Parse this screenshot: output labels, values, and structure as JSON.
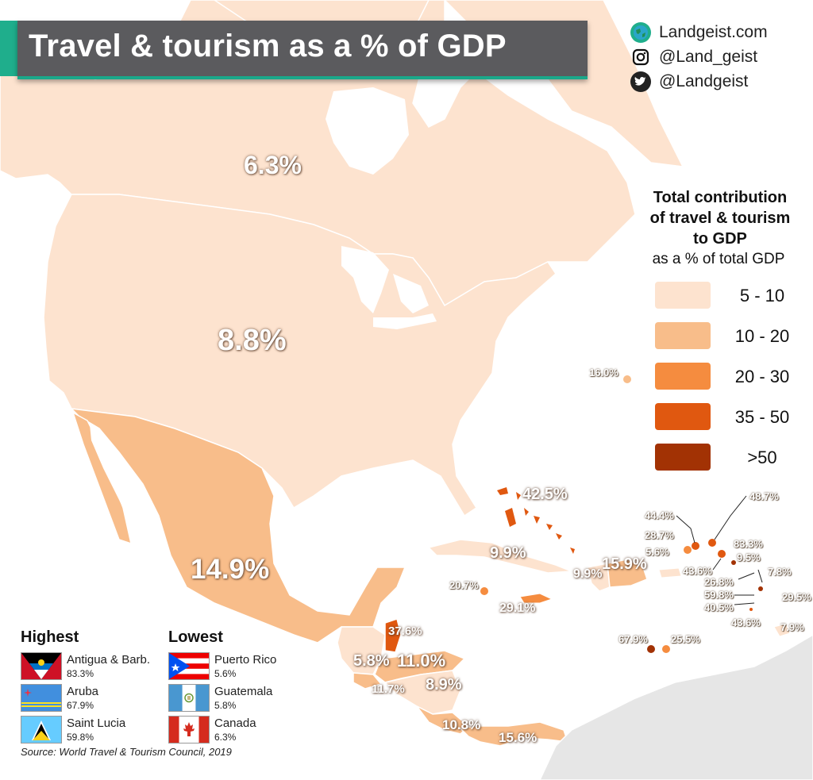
{
  "title": "Travel & tourism as a % of GDP",
  "social": {
    "website": "Landgeist.com",
    "instagram": "@Land_geist",
    "twitter": "@Landgeist"
  },
  "legend": {
    "title_lines": [
      "Total contribution",
      "of travel & tourism",
      "to GDP"
    ],
    "subtitle": "as a % of total GDP",
    "classes": [
      {
        "label": "5  - 10",
        "color": "#fde3cf"
      },
      {
        "label": "10 - 20",
        "color": "#f8bd8a"
      },
      {
        "label": "20 - 30",
        "color": "#f58c3f"
      },
      {
        "label": "35 - 50",
        "color": "#e05810"
      },
      {
        "label": ">50",
        "color": "#a23204"
      }
    ]
  },
  "colors": {
    "land_other": "#e6e6e6",
    "ocean": "#ffffff",
    "border": "#ffffff",
    "accent": "#1fae8c"
  },
  "map_values": {
    "canada": "6.3%",
    "usa": "8.8%",
    "mexico": "14.9%",
    "bermuda": "16.0%",
    "bahamas": "42.5%",
    "cuba": "9.9%",
    "haiti": "9.9%",
    "dominican_republic": "15.9%",
    "cayman_islands": "20.7%",
    "jamaica": "29.1%",
    "belize": "37.6%",
    "guatemala": "5.8%",
    "honduras": "11.0%",
    "el_salvador": "11.7%",
    "nicaragua": "8.9%",
    "costa_rica": "10.8%",
    "panama": "15.6%",
    "turks_caicos": "44.4%",
    "bvi": "48.7%",
    "usvi": "28.7%",
    "puerto_rico": "5.6%",
    "antigua": "83.3%",
    "anguilla": "43.6%",
    "st_kitts": "9.5%",
    "guadeloupe": "7.8%",
    "dominica": "26.8%",
    "st_lucia": "59.8%",
    "st_vincent": "40.5%",
    "barbados": "29.5%",
    "grenada": "43.6%",
    "trinidad": "7.9%",
    "aruba": "67.9%",
    "curacao": "25.5%"
  },
  "rankings": {
    "highest_title": "Highest",
    "lowest_title": "Lowest",
    "highest": [
      {
        "name": "Antigua & Barb.",
        "value": "83.3%",
        "flag": "antigua-flag"
      },
      {
        "name": "Aruba",
        "value": "67.9%",
        "flag": "aruba-flag"
      },
      {
        "name": "Saint Lucia",
        "value": "59.8%",
        "flag": "saint-lucia-flag"
      }
    ],
    "lowest": [
      {
        "name": "Puerto Rico",
        "value": "5.6%",
        "flag": "puerto-rico-flag"
      },
      {
        "name": "Guatemala",
        "value": "5.8%",
        "flag": "guatemala-flag"
      },
      {
        "name": "Canada",
        "value": "6.3%",
        "flag": "canada-flag"
      }
    ]
  },
  "source": "Source: World Travel & Tourism Council, 2019"
}
